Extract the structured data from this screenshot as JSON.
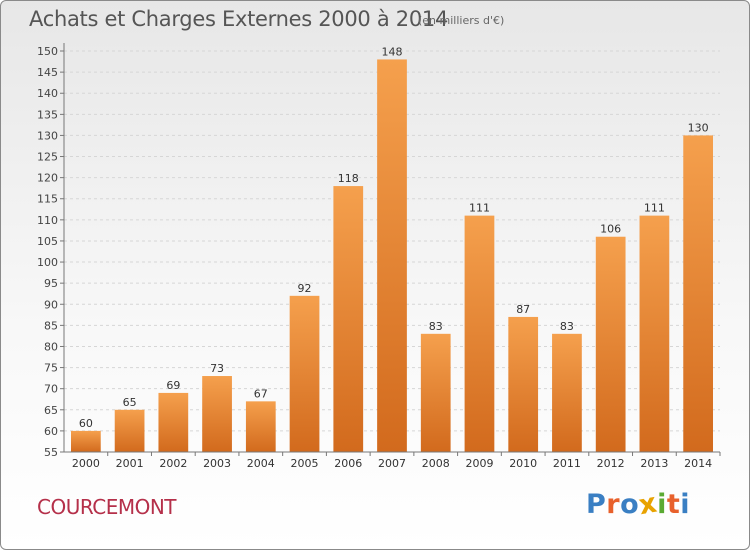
{
  "chart_data": {
    "type": "bar",
    "title": "Achats et Charges Externes 2000 à 2014",
    "unit_label": "(en milliers d'€)",
    "categories": [
      "2000",
      "2001",
      "2002",
      "2003",
      "2004",
      "2005",
      "2006",
      "2007",
      "2008",
      "2009",
      "2010",
      "2011",
      "2012",
      "2013",
      "2014"
    ],
    "values": [
      60,
      65,
      69,
      73,
      67,
      92,
      118,
      148,
      83,
      111,
      87,
      83,
      106,
      111,
      130
    ],
    "ylim": [
      55,
      150
    ],
    "yticks": [
      55,
      60,
      65,
      70,
      75,
      80,
      85,
      90,
      95,
      100,
      105,
      110,
      115,
      120,
      125,
      130,
      135,
      140,
      145,
      150
    ],
    "grid": true,
    "bar_color_top": "#f5a04d",
    "bar_color_bottom": "#d26a1d",
    "legend": "none"
  },
  "footer": {
    "place_name": "COURCEMONT",
    "logo_letters": [
      "P",
      "r",
      "o",
      "x",
      "i",
      "t",
      "i"
    ],
    "logo_colors": [
      "#3a7fc3",
      "#e8612c",
      "#3a7fc3",
      "#e8a200",
      "#5aaa32",
      "#e8612c",
      "#3a7fc3"
    ]
  }
}
